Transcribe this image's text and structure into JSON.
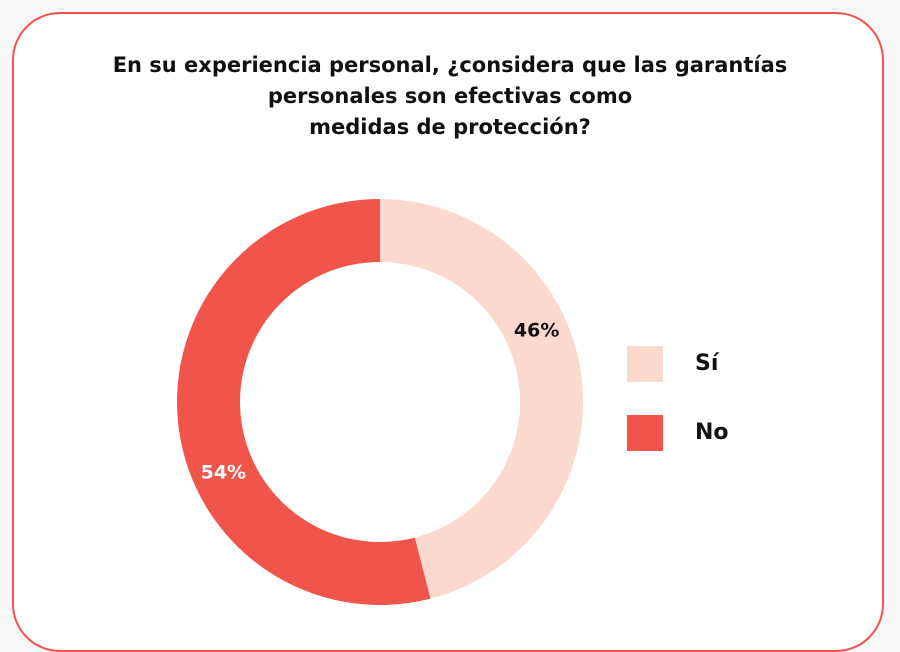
{
  "chart_data": {
    "type": "donut",
    "title": "En su experiencia personal, ¿considera que las garantías\npersonales son efectivas como\nmedidas de protección?",
    "categories": [
      "Sí",
      "No"
    ],
    "values": [
      46,
      54
    ],
    "value_labels": [
      "46%",
      "54%"
    ],
    "colors": [
      "#fcd9cf",
      "#f0544a"
    ],
    "legend": "right"
  }
}
